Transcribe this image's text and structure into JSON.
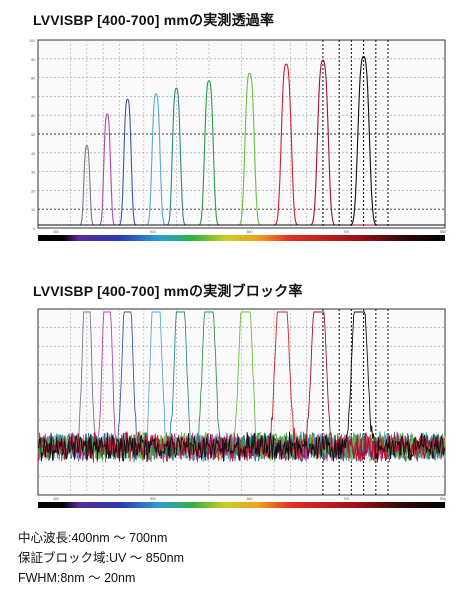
{
  "titles": {
    "transmission": "LVVISBP [400-700] mmの実測透過率",
    "blocking": "LVVISBP [400-700] mmの実測ブロック率"
  },
  "specs": [
    "中心波長:400nm 〜 700nm",
    "保証ブロック域:UV 〜 850nm",
    "FWHM:8nm 〜 20nm"
  ],
  "chart_data": [
    {
      "type": "line",
      "title": "LVVISBP [400-700] mmの実測透過率",
      "xlabel": "",
      "ylabel": "",
      "x_unit": "nm",
      "xlim": [
        350,
        850
      ],
      "ylim": [
        0,
        100
      ],
      "x_tick_labels": [
        "400",
        "500",
        "600",
        "700",
        "850"
      ],
      "y_tick_labels": [
        "100",
        "90",
        "80",
        "70",
        "60",
        "50",
        "40",
        "30",
        "20",
        "10",
        "0"
      ],
      "grid": true,
      "series": [
        {
          "center": 410,
          "peak": 43,
          "fwhm": 9,
          "color": "#7a7a8a"
        },
        {
          "center": 435,
          "peak": 60,
          "fwhm": 10,
          "color": "#b04aa8"
        },
        {
          "center": 460,
          "peak": 68,
          "fwhm": 11,
          "color": "#3a5aa8"
        },
        {
          "center": 495,
          "peak": 71,
          "fwhm": 12,
          "color": "#5aa8d8"
        },
        {
          "center": 520,
          "peak": 74,
          "fwhm": 12,
          "color": "#2a8a8a"
        },
        {
          "center": 560,
          "peak": 78,
          "fwhm": 13,
          "color": "#2a9a4a"
        },
        {
          "center": 610,
          "peak": 82,
          "fwhm": 14,
          "color": "#6ac040"
        },
        {
          "center": 655,
          "peak": 87,
          "fwhm": 15,
          "color": "#d02030"
        },
        {
          "center": 700,
          "peak": 89,
          "fwhm": 16,
          "color": "#a01040"
        },
        {
          "center": 750,
          "peak": 91,
          "fwhm": 17,
          "color": "#101010"
        }
      ]
    },
    {
      "type": "line",
      "title": "LVVISBP [400-700] mmの実測ブロック率",
      "xlabel": "",
      "ylabel": "",
      "x_unit": "nm",
      "y_scale": "log",
      "xlim": [
        350,
        850
      ],
      "ylim_decades": [
        -6,
        0
      ],
      "x_tick_labels": [
        "400",
        "500",
        "600",
        "700",
        "850"
      ],
      "grid": true,
      "series": [
        {
          "center": 410,
          "fwhm": 14,
          "color": "#7a7a8a"
        },
        {
          "center": 435,
          "fwhm": 15,
          "color": "#b04aa8"
        },
        {
          "center": 460,
          "fwhm": 16,
          "color": "#3a5aa8"
        },
        {
          "center": 495,
          "fwhm": 17,
          "color": "#5aa8d8"
        },
        {
          "center": 525,
          "fwhm": 18,
          "color": "#2a8a8a"
        },
        {
          "center": 560,
          "fwhm": 19,
          "color": "#2a9a4a"
        },
        {
          "center": 605,
          "fwhm": 20,
          "color": "#6ac040"
        },
        {
          "center": 650,
          "fwhm": 21,
          "color": "#d02030"
        },
        {
          "center": 695,
          "fwhm": 22,
          "color": "#a01040"
        },
        {
          "center": 745,
          "fwhm": 23,
          "color": "#101010"
        }
      ]
    }
  ]
}
